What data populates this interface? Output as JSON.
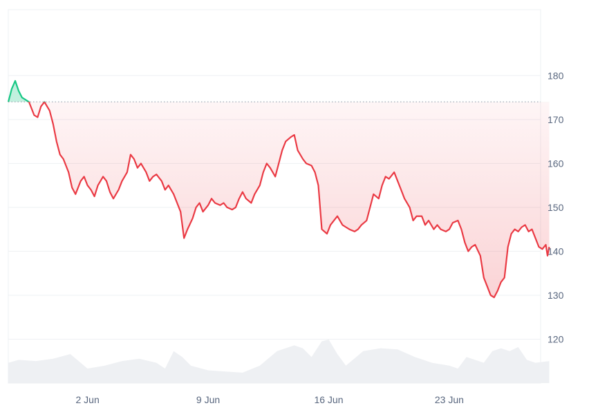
{
  "chart_data": {
    "type": "line",
    "title": "",
    "xlabel": "",
    "ylabel": "",
    "x_ticks": [
      {
        "label": "2 Jun",
        "day": 2
      },
      {
        "label": "9 Jun",
        "day": 9
      },
      {
        "label": "16 Jun",
        "day": 16
      },
      {
        "label": "23 Jun",
        "day": 23
      }
    ],
    "y_ticks": [
      120,
      130,
      140,
      150,
      160,
      170,
      180
    ],
    "ylim": [
      110,
      195
    ],
    "xlim_day": [
      28.4,
      59.3
    ],
    "baseline": 174,
    "grid": true,
    "colors": {
      "up_line": "#16c784",
      "up_fill": "#16c784",
      "down_line": "#ea3943",
      "down_fill": "#ea3943",
      "volume": "#eef0f3",
      "baseline": "#a0a7b4"
    },
    "series": [
      {
        "points": [
          [
            28.4,
            174
          ],
          [
            28.6,
            177
          ],
          [
            28.8,
            178.8
          ],
          [
            29.0,
            176.5
          ],
          [
            29.2,
            175
          ],
          [
            29.4,
            174.5
          ],
          [
            29.6,
            174
          ],
          [
            29.9,
            171
          ],
          [
            30.1,
            170.5
          ],
          [
            30.3,
            173
          ],
          [
            30.5,
            174
          ],
          [
            30.8,
            172
          ],
          [
            31.0,
            169
          ],
          [
            31.2,
            165
          ],
          [
            31.4,
            162
          ],
          [
            31.6,
            161
          ],
          [
            31.9,
            158
          ],
          [
            32.1,
            154.5
          ],
          [
            32.3,
            153
          ],
          [
            32.6,
            156
          ],
          [
            32.8,
            157
          ],
          [
            33.0,
            155
          ],
          [
            33.2,
            154
          ],
          [
            33.4,
            152.5
          ],
          [
            33.6,
            155
          ],
          [
            33.9,
            157
          ],
          [
            34.1,
            156
          ],
          [
            34.3,
            153.5
          ],
          [
            34.5,
            152
          ],
          [
            34.8,
            154
          ],
          [
            35.0,
            156
          ],
          [
            35.3,
            158
          ],
          [
            35.5,
            162
          ],
          [
            35.7,
            161
          ],
          [
            35.9,
            159
          ],
          [
            36.1,
            160
          ],
          [
            36.4,
            158
          ],
          [
            36.6,
            156
          ],
          [
            36.8,
            157
          ],
          [
            37.0,
            157.5
          ],
          [
            37.3,
            156
          ],
          [
            37.5,
            154
          ],
          [
            37.7,
            155
          ],
          [
            38.0,
            153
          ],
          [
            38.2,
            151
          ],
          [
            38.4,
            149
          ],
          [
            38.6,
            143
          ],
          [
            38.8,
            145
          ],
          [
            39.1,
            147.5
          ],
          [
            39.3,
            150
          ],
          [
            39.5,
            151
          ],
          [
            39.7,
            149
          ],
          [
            40.0,
            150.5
          ],
          [
            40.2,
            152
          ],
          [
            40.4,
            151
          ],
          [
            40.7,
            150.5
          ],
          [
            40.9,
            151
          ],
          [
            41.1,
            150
          ],
          [
            41.4,
            149.5
          ],
          [
            41.6,
            150
          ],
          [
            41.8,
            152
          ],
          [
            42.0,
            153.5
          ],
          [
            42.2,
            152
          ],
          [
            42.5,
            151
          ],
          [
            42.7,
            153
          ],
          [
            43.0,
            155
          ],
          [
            43.2,
            158
          ],
          [
            43.4,
            160
          ],
          [
            43.6,
            159
          ],
          [
            43.9,
            157
          ],
          [
            44.1,
            160
          ],
          [
            44.3,
            163
          ],
          [
            44.5,
            165
          ],
          [
            44.8,
            166
          ],
          [
            45.0,
            166.5
          ],
          [
            45.2,
            163
          ],
          [
            45.5,
            161
          ],
          [
            45.7,
            160
          ],
          [
            46.0,
            159.5
          ],
          [
            46.2,
            158
          ],
          [
            46.4,
            155
          ],
          [
            46.6,
            145
          ],
          [
            46.9,
            144
          ],
          [
            47.1,
            146
          ],
          [
            47.3,
            147
          ],
          [
            47.5,
            148
          ],
          [
            47.8,
            146
          ],
          [
            48.0,
            145.5
          ],
          [
            48.2,
            145
          ],
          [
            48.5,
            144.5
          ],
          [
            48.7,
            145
          ],
          [
            48.9,
            146
          ],
          [
            49.2,
            147
          ],
          [
            49.4,
            150
          ],
          [
            49.6,
            153
          ],
          [
            49.9,
            152
          ],
          [
            50.1,
            155
          ],
          [
            50.3,
            157
          ],
          [
            50.5,
            156.5
          ],
          [
            50.8,
            158
          ],
          [
            51.0,
            156
          ],
          [
            51.2,
            154
          ],
          [
            51.4,
            152
          ],
          [
            51.7,
            150
          ],
          [
            51.9,
            147
          ],
          [
            52.1,
            148
          ],
          [
            52.4,
            148
          ],
          [
            52.6,
            146
          ],
          [
            52.8,
            147
          ],
          [
            53.1,
            145
          ],
          [
            53.3,
            146
          ],
          [
            53.5,
            145
          ],
          [
            53.8,
            144.5
          ],
          [
            54.0,
            145
          ],
          [
            54.2,
            146.5
          ],
          [
            54.5,
            147
          ],
          [
            54.7,
            145
          ],
          [
            54.9,
            142
          ],
          [
            55.1,
            140
          ],
          [
            55.3,
            141
          ],
          [
            55.5,
            141.5
          ],
          [
            55.8,
            139
          ],
          [
            56.0,
            134
          ],
          [
            56.2,
            132
          ],
          [
            56.4,
            130
          ],
          [
            56.6,
            129.5
          ],
          [
            56.8,
            131
          ],
          [
            57.0,
            133
          ],
          [
            57.2,
            134
          ],
          [
            57.4,
            141
          ],
          [
            57.6,
            144
          ],
          [
            57.8,
            145
          ],
          [
            58.0,
            144.5
          ],
          [
            58.2,
            145.5
          ],
          [
            58.4,
            146
          ],
          [
            58.6,
            144.5
          ],
          [
            58.8,
            145
          ],
          [
            59.0,
            143
          ],
          [
            59.2,
            141
          ],
          [
            59.4,
            140.5
          ],
          [
            59.6,
            141.5
          ],
          [
            59.7,
            139
          ],
          [
            59.8,
            141
          ]
        ]
      }
    ],
    "volume_profile": [
      [
        28.4,
        0.35
      ],
      [
        29.0,
        0.4
      ],
      [
        30.0,
        0.38
      ],
      [
        31.0,
        0.42
      ],
      [
        32.0,
        0.5
      ],
      [
        33.0,
        0.25
      ],
      [
        34.0,
        0.3
      ],
      [
        35.0,
        0.38
      ],
      [
        36.0,
        0.42
      ],
      [
        37.0,
        0.35
      ],
      [
        37.5,
        0.25
      ],
      [
        38.0,
        0.55
      ],
      [
        38.5,
        0.45
      ],
      [
        39.0,
        0.3
      ],
      [
        40.0,
        0.22
      ],
      [
        41.0,
        0.2
      ],
      [
        42.0,
        0.18
      ],
      [
        43.0,
        0.3
      ],
      [
        44.0,
        0.55
      ],
      [
        45.0,
        0.65
      ],
      [
        45.5,
        0.6
      ],
      [
        46.0,
        0.45
      ],
      [
        46.6,
        0.72
      ],
      [
        47.0,
        0.75
      ],
      [
        47.5,
        0.5
      ],
      [
        48.0,
        0.3
      ],
      [
        49.0,
        0.55
      ],
      [
        50.0,
        0.6
      ],
      [
        51.0,
        0.58
      ],
      [
        52.0,
        0.45
      ],
      [
        53.0,
        0.35
      ],
      [
        54.0,
        0.3
      ],
      [
        54.5,
        0.25
      ],
      [
        55.0,
        0.45
      ],
      [
        55.5,
        0.4
      ],
      [
        56.0,
        0.35
      ],
      [
        56.5,
        0.55
      ],
      [
        57.0,
        0.6
      ],
      [
        57.5,
        0.55
      ],
      [
        58.0,
        0.62
      ],
      [
        58.5,
        0.4
      ],
      [
        59.0,
        0.35
      ],
      [
        59.8,
        0.38
      ]
    ]
  }
}
